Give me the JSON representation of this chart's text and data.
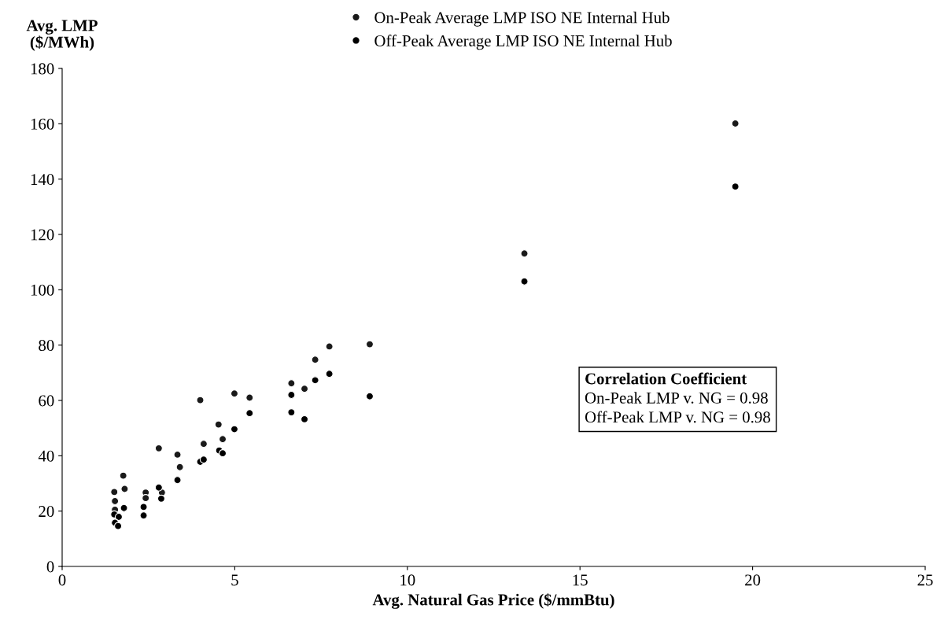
{
  "chart_data": {
    "type": "scatter",
    "xlabel": "Avg. Natural Gas Price ($/mmBtu)",
    "ylabel": "Avg. LMP\n($/MWh)",
    "series": [
      {
        "name": "On-Peak Average LMP ISO NE Internal Hub",
        "color": "#1a1a1a",
        "x": [
          1.77,
          1.81,
          1.51,
          1.53,
          1.53,
          2.42,
          2.42,
          2.8,
          2.89,
          3.34,
          3.41,
          4.0,
          4.1,
          4.53,
          4.65,
          4.99,
          5.43,
          6.64,
          7.02,
          7.33,
          7.74,
          8.91,
          13.39,
          19.5
        ],
        "values": [
          32.8,
          28.0,
          26.9,
          23.6,
          20.5,
          26.7,
          24.7,
          42.7,
          26.7,
          40.4,
          35.9,
          60.1,
          44.3,
          51.3,
          46.0,
          62.5,
          61.0,
          66.2,
          64.2,
          74.7,
          79.5,
          80.3,
          113.1,
          160.1
        ]
      },
      {
        "name": "Off-Peak Average LMP ISO NE Internal Hub",
        "color": "#000000",
        "x": [
          1.79,
          1.51,
          1.64,
          1.53,
          1.62,
          2.36,
          2.36,
          2.8,
          2.87,
          3.34,
          4.0,
          4.1,
          4.55,
          4.65,
          4.99,
          5.43,
          6.64,
          6.64,
          7.02,
          7.33,
          7.74,
          8.91,
          13.39,
          19.5
        ],
        "values": [
          21.1,
          18.8,
          17.9,
          15.8,
          14.6,
          21.5,
          18.4,
          28.5,
          24.5,
          31.2,
          37.8,
          38.6,
          41.9,
          40.9,
          49.6,
          55.4,
          62.0,
          55.7,
          53.2,
          67.3,
          69.6,
          61.5,
          103.0,
          137.3
        ]
      }
    ],
    "xlim": [
      0,
      25
    ],
    "xticks": [
      0,
      5,
      10,
      15,
      20,
      25
    ],
    "ylim": [
      0,
      180
    ],
    "yticks": [
      0,
      20,
      40,
      60,
      80,
      100,
      120,
      140,
      160,
      180
    ],
    "marker": "circle",
    "grid": false,
    "legend": "top",
    "annotations": [
      "Correlation Coefficient",
      "On-Peak LMP v. NG = 0.98",
      "Off-Peak LMP v. NG = 0.98"
    ]
  }
}
